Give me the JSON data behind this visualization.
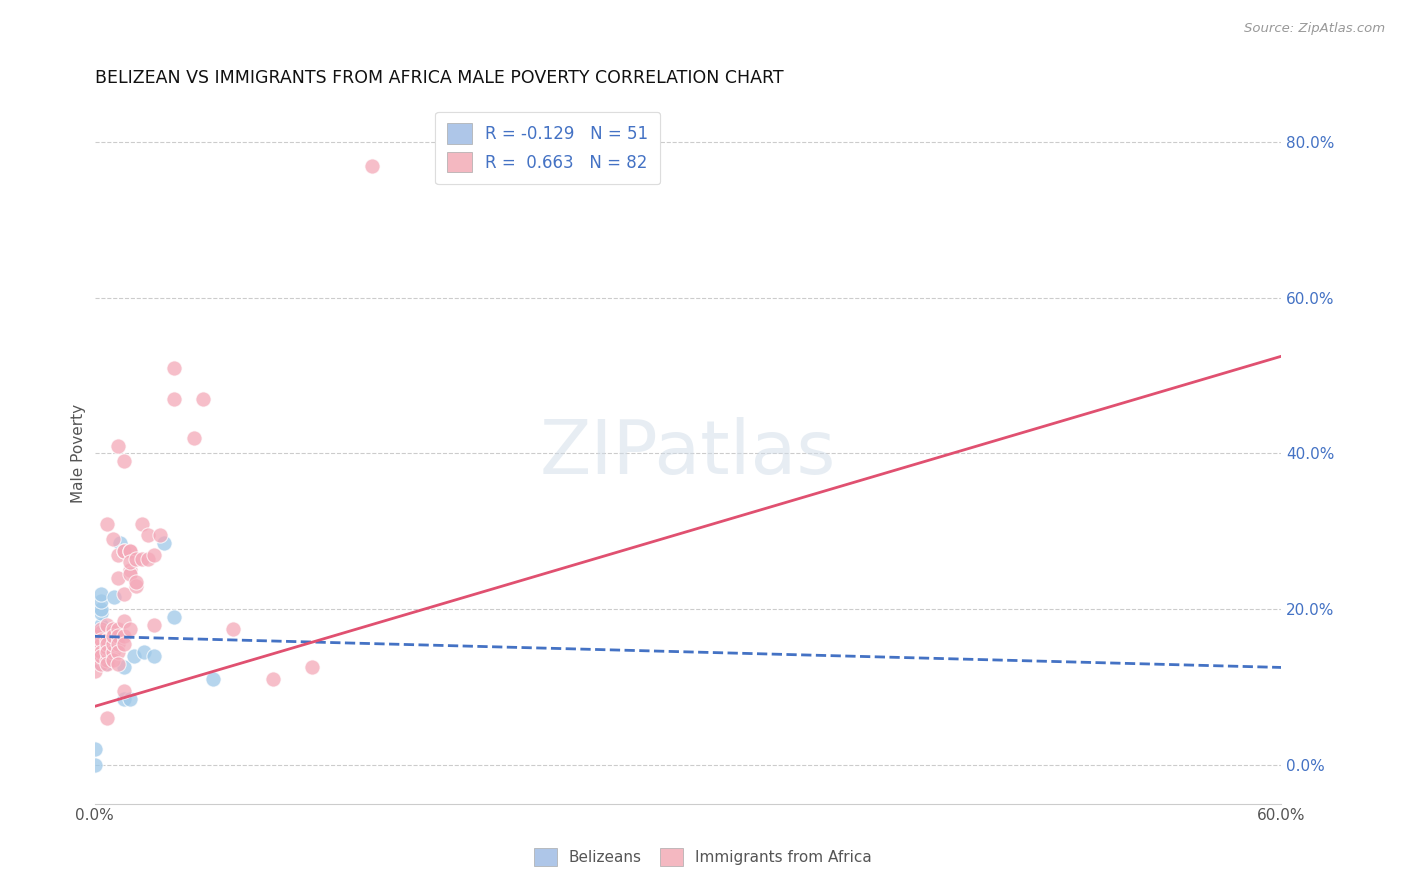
{
  "title": "BELIZEAN VS IMMIGRANTS FROM AFRICA MALE POVERTY CORRELATION CHART",
  "source": "Source: ZipAtlas.com",
  "ylabel_label": "Male Poverty",
  "x_tick_labels": [
    "0.0%",
    "",
    "",
    "",
    "",
    "",
    "",
    "",
    "",
    "",
    "",
    "60.0%"
  ],
  "y_tick_labels_right": [
    "0.0%",
    "20.0%",
    "40.0%",
    "60.0%",
    "80.0%"
  ],
  "xlim": [
    0.0,
    0.6
  ],
  "ylim": [
    -0.05,
    0.85
  ],
  "watermark": "ZIPatlas",
  "legend_entries": [
    {
      "label": "R = -0.129   N = 51",
      "color": "#aec6e8"
    },
    {
      "label": "R =  0.663   N = 82",
      "color": "#f4b8c1"
    }
  ],
  "belizean_scatter": [
    [
      0.0,
      0.0
    ],
    [
      0.0,
      0.02
    ],
    [
      0.0,
      0.15
    ],
    [
      0.0,
      0.16
    ],
    [
      0.0,
      0.17
    ],
    [
      0.003,
      0.13
    ],
    [
      0.003,
      0.14
    ],
    [
      0.003,
      0.155
    ],
    [
      0.003,
      0.16
    ],
    [
      0.003,
      0.18
    ],
    [
      0.003,
      0.195
    ],
    [
      0.003,
      0.2
    ],
    [
      0.003,
      0.21
    ],
    [
      0.003,
      0.22
    ],
    [
      0.003,
      0.17
    ],
    [
      0.005,
      0.155
    ],
    [
      0.005,
      0.15
    ],
    [
      0.005,
      0.14
    ],
    [
      0.005,
      0.13
    ],
    [
      0.007,
      0.165
    ],
    [
      0.007,
      0.155
    ],
    [
      0.007,
      0.165
    ],
    [
      0.007,
      0.16
    ],
    [
      0.01,
      0.215
    ],
    [
      0.01,
      0.165
    ],
    [
      0.013,
      0.285
    ],
    [
      0.015,
      0.085
    ],
    [
      0.015,
      0.125
    ],
    [
      0.018,
      0.085
    ],
    [
      0.02,
      0.14
    ],
    [
      0.025,
      0.145
    ],
    [
      0.03,
      0.14
    ],
    [
      0.035,
      0.285
    ],
    [
      0.04,
      0.19
    ],
    [
      0.06,
      0.11
    ]
  ],
  "africa_scatter": [
    [
      0.0,
      0.15
    ],
    [
      0.0,
      0.16
    ],
    [
      0.0,
      0.165
    ],
    [
      0.0,
      0.14
    ],
    [
      0.0,
      0.12
    ],
    [
      0.003,
      0.13
    ],
    [
      0.003,
      0.15
    ],
    [
      0.003,
      0.155
    ],
    [
      0.003,
      0.17
    ],
    [
      0.003,
      0.175
    ],
    [
      0.003,
      0.16
    ],
    [
      0.003,
      0.145
    ],
    [
      0.003,
      0.14
    ],
    [
      0.006,
      0.135
    ],
    [
      0.006,
      0.15
    ],
    [
      0.006,
      0.16
    ],
    [
      0.006,
      0.155
    ],
    [
      0.006,
      0.145
    ],
    [
      0.006,
      0.13
    ],
    [
      0.006,
      0.18
    ],
    [
      0.006,
      0.31
    ],
    [
      0.006,
      0.06
    ],
    [
      0.009,
      0.145
    ],
    [
      0.009,
      0.17
    ],
    [
      0.009,
      0.175
    ],
    [
      0.009,
      0.155
    ],
    [
      0.009,
      0.135
    ],
    [
      0.009,
      0.165
    ],
    [
      0.009,
      0.29
    ],
    [
      0.012,
      0.175
    ],
    [
      0.012,
      0.24
    ],
    [
      0.012,
      0.165
    ],
    [
      0.012,
      0.27
    ],
    [
      0.012,
      0.155
    ],
    [
      0.012,
      0.145
    ],
    [
      0.012,
      0.13
    ],
    [
      0.012,
      0.41
    ],
    [
      0.015,
      0.165
    ],
    [
      0.015,
      0.22
    ],
    [
      0.015,
      0.185
    ],
    [
      0.015,
      0.275
    ],
    [
      0.015,
      0.155
    ],
    [
      0.015,
      0.275
    ],
    [
      0.015,
      0.39
    ],
    [
      0.015,
      0.095
    ],
    [
      0.018,
      0.25
    ],
    [
      0.018,
      0.275
    ],
    [
      0.018,
      0.245
    ],
    [
      0.018,
      0.275
    ],
    [
      0.018,
      0.26
    ],
    [
      0.018,
      0.175
    ],
    [
      0.021,
      0.23
    ],
    [
      0.021,
      0.235
    ],
    [
      0.021,
      0.265
    ],
    [
      0.024,
      0.265
    ],
    [
      0.024,
      0.31
    ],
    [
      0.027,
      0.265
    ],
    [
      0.027,
      0.295
    ],
    [
      0.03,
      0.27
    ],
    [
      0.03,
      0.18
    ],
    [
      0.033,
      0.295
    ],
    [
      0.04,
      0.51
    ],
    [
      0.04,
      0.47
    ],
    [
      0.05,
      0.42
    ],
    [
      0.055,
      0.47
    ],
    [
      0.07,
      0.175
    ],
    [
      0.09,
      0.11
    ],
    [
      0.11,
      0.125
    ],
    [
      0.14,
      0.77
    ]
  ],
  "belizean_trend": {
    "x_start": 0.0,
    "y_start": 0.165,
    "x_end": 0.6,
    "y_end": 0.125
  },
  "africa_trend": {
    "x_start": 0.0,
    "y_start": 0.075,
    "x_end": 0.6,
    "y_end": 0.525
  },
  "belizean_trend_color": "#4472c4",
  "africa_trend_color": "#e05070",
  "belizean_scatter_color": "#9ec8e8",
  "africa_scatter_color": "#f4a8b8"
}
